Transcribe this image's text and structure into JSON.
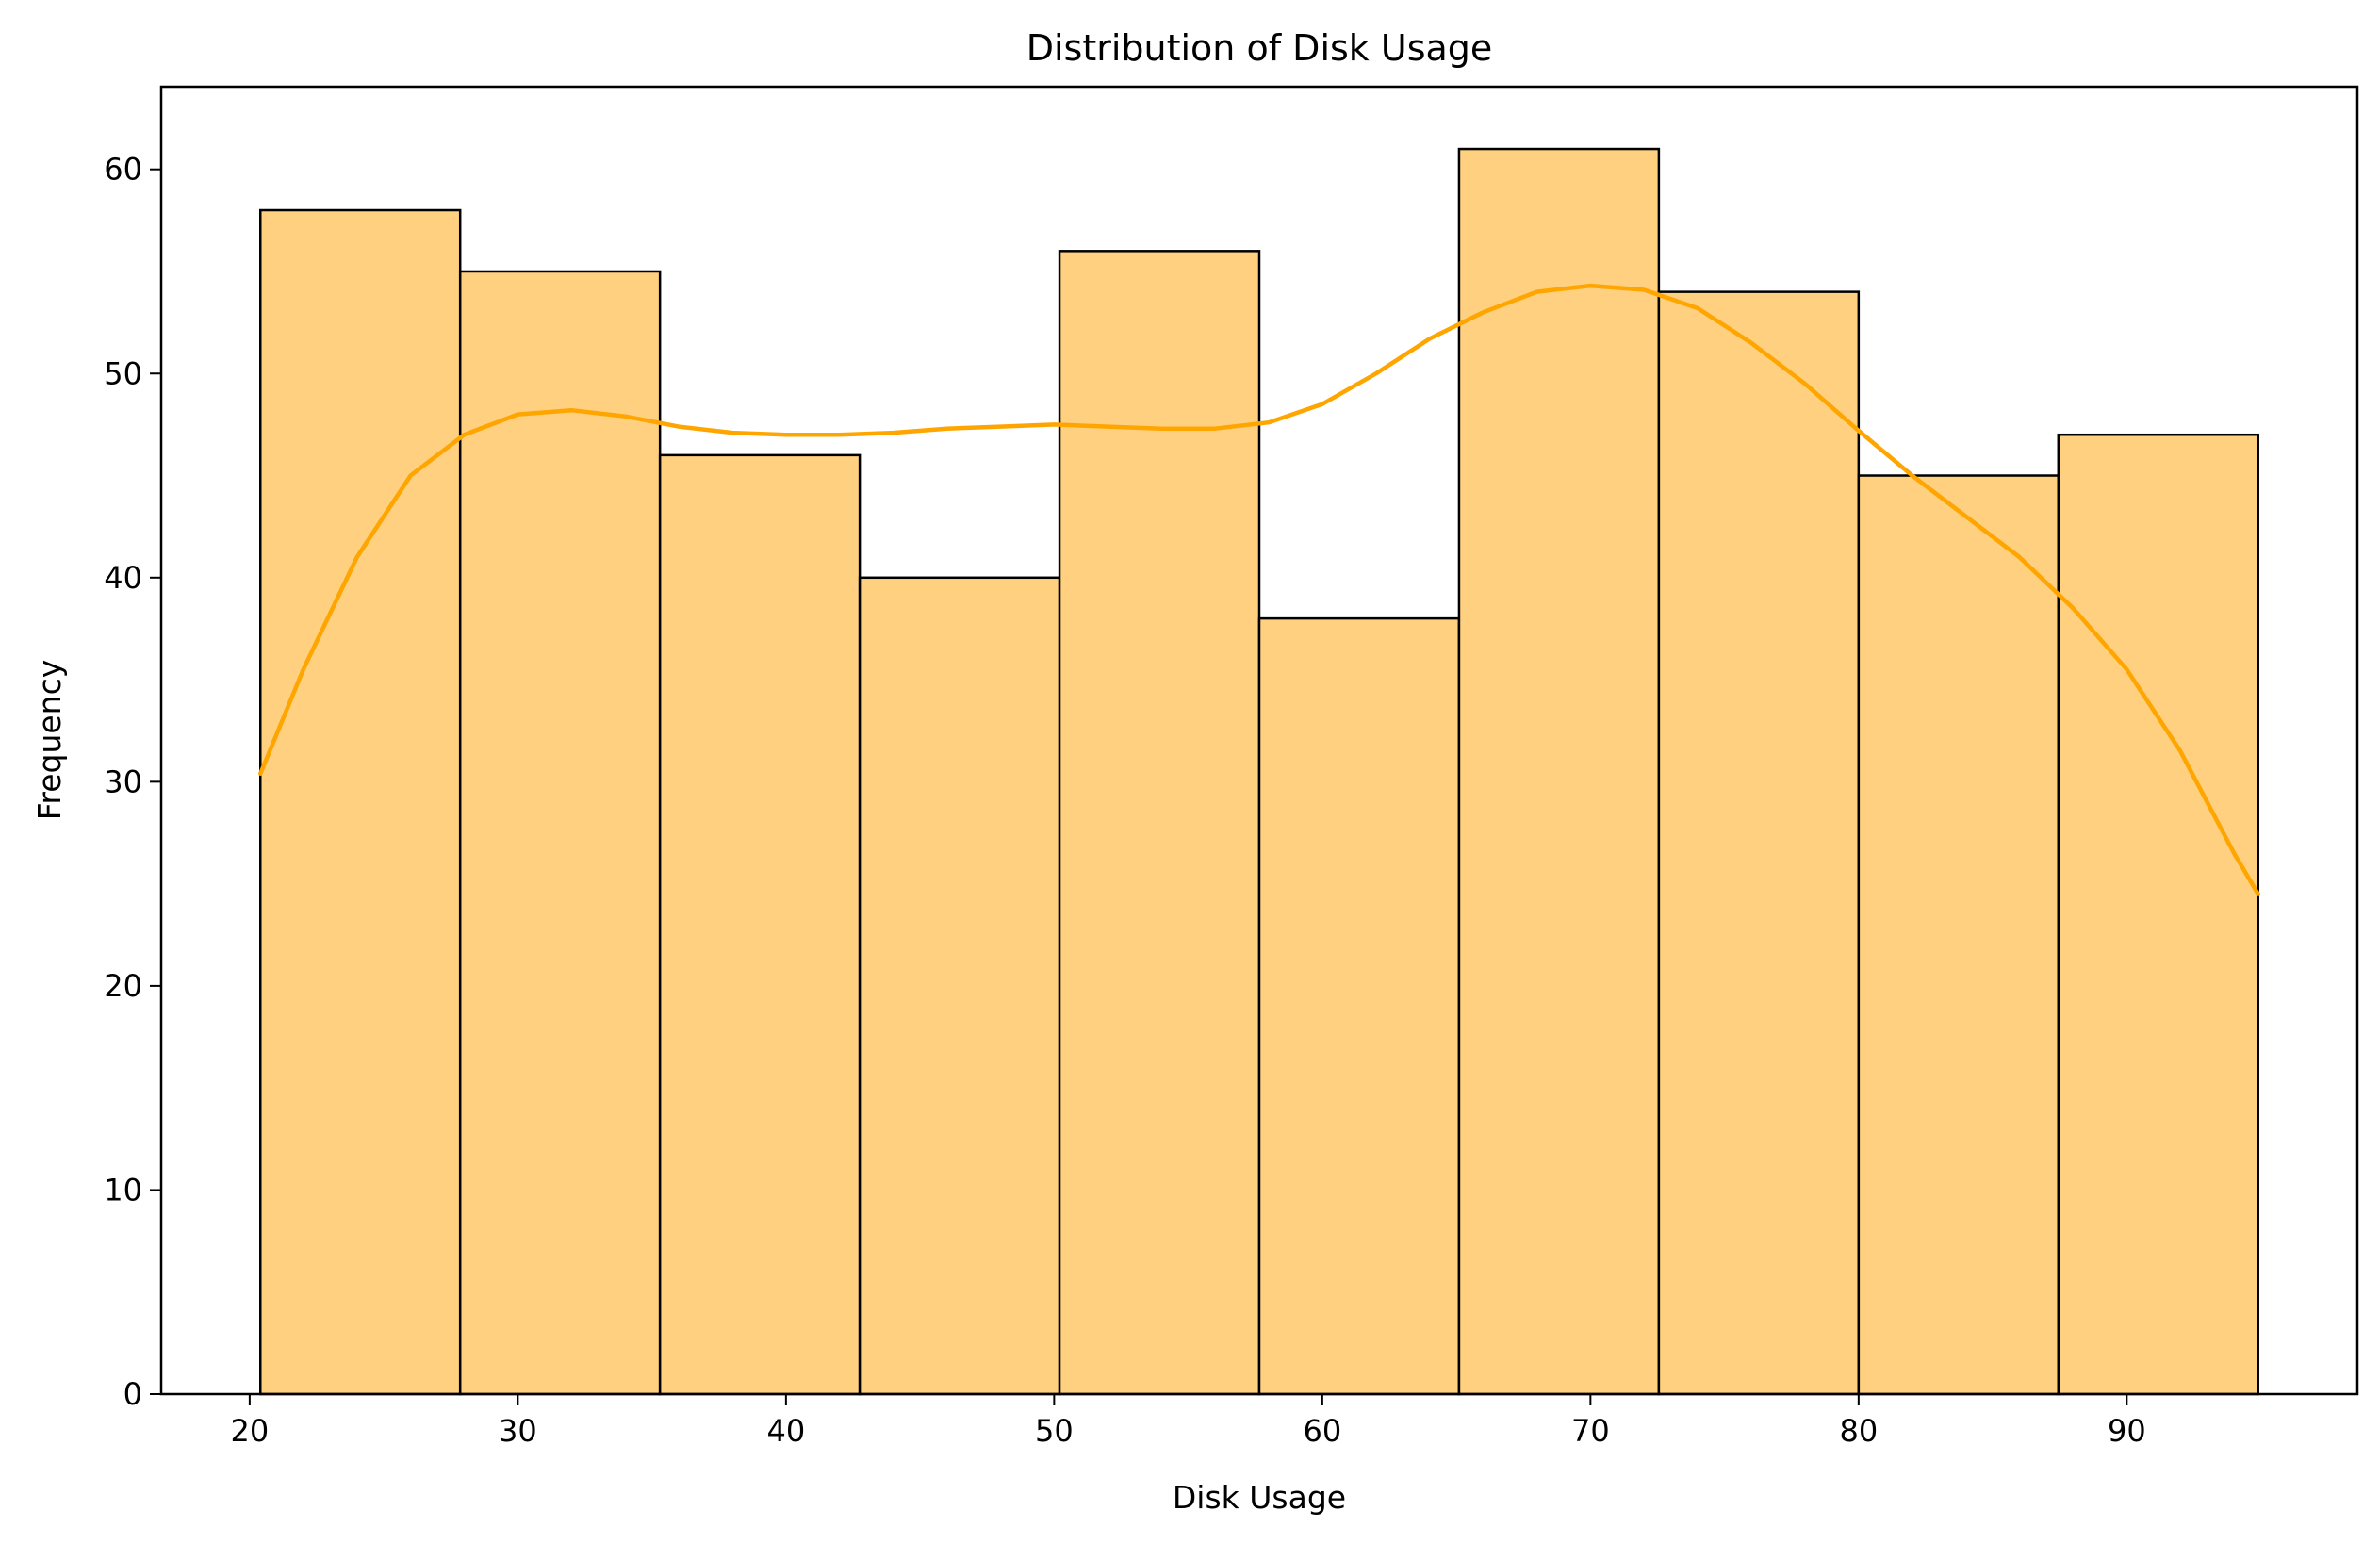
{
  "chart_data": {
    "type": "bar",
    "title": "Distribution of Disk Usage",
    "xlabel": "Disk Usage",
    "ylabel": "Frequency",
    "bins": [
      {
        "x0": 20.4,
        "x1": 27.85,
        "count": 58
      },
      {
        "x0": 27.85,
        "x1": 35.3,
        "count": 55
      },
      {
        "x0": 35.3,
        "x1": 42.75,
        "count": 46
      },
      {
        "x0": 42.75,
        "x1": 50.2,
        "count": 40
      },
      {
        "x0": 50.2,
        "x1": 57.65,
        "count": 56
      },
      {
        "x0": 57.65,
        "x1": 65.1,
        "count": 38
      },
      {
        "x0": 65.1,
        "x1": 72.55,
        "count": 61
      },
      {
        "x0": 72.55,
        "x1": 80.0,
        "count": 54
      },
      {
        "x0": 80.0,
        "x1": 87.45,
        "count": 45
      },
      {
        "x0": 87.45,
        "x1": 94.9,
        "count": 47
      }
    ],
    "kde": {
      "x": [
        20.4,
        22,
        24,
        26,
        28,
        30,
        32,
        34,
        36,
        38,
        40,
        42,
        44,
        46,
        48,
        50,
        52,
        54,
        56,
        58,
        60,
        62,
        64,
        66,
        68,
        70,
        72,
        74,
        76,
        78,
        80,
        82,
        84,
        86,
        88,
        90,
        92,
        94,
        94.9
      ],
      "y": [
        30.4,
        35.5,
        41.0,
        45.0,
        47.0,
        48.0,
        48.2,
        47.9,
        47.4,
        47.1,
        47.0,
        47.0,
        47.1,
        47.3,
        47.4,
        47.5,
        47.4,
        47.3,
        47.3,
        47.6,
        48.5,
        50.0,
        51.7,
        53.0,
        54.0,
        54.3,
        54.1,
        53.2,
        51.5,
        49.5,
        47.2,
        45.0,
        43.0,
        41.0,
        38.5,
        35.5,
        31.5,
        26.5,
        24.5
      ]
    },
    "xlim": [
      16.7,
      98.6
    ],
    "ylim": [
      0,
      64.05
    ],
    "xticks": [
      20,
      30,
      40,
      50,
      60,
      70,
      80,
      90
    ],
    "yticks": [
      0,
      10,
      20,
      30,
      40,
      50,
      60
    ],
    "grid": false,
    "colors": {
      "bar_fill": "#ffd07f",
      "bar_edge": "#000000",
      "kde_line": "#ffa500"
    }
  }
}
